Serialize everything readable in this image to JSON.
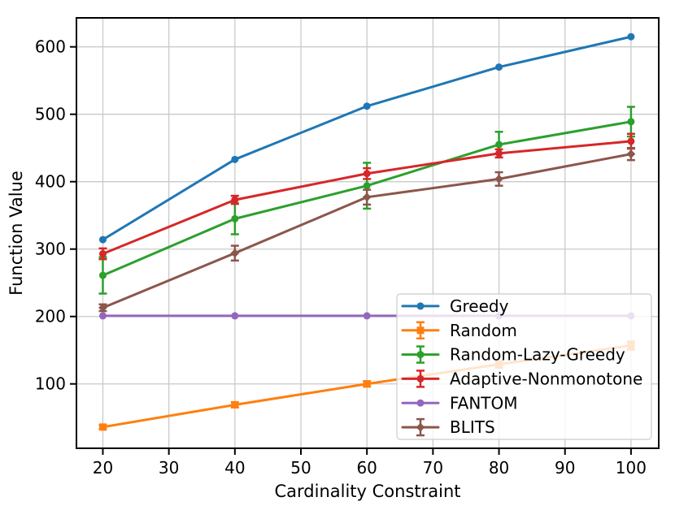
{
  "chart_data": {
    "type": "line",
    "title": "",
    "xlabel": "Cardinality Constraint",
    "ylabel": "Function Value",
    "x": [
      20,
      40,
      60,
      80,
      100
    ],
    "xticks": [
      20,
      30,
      40,
      50,
      60,
      70,
      80,
      90,
      100
    ],
    "yticks": [
      100,
      200,
      300,
      400,
      500,
      600
    ],
    "xlim": [
      16,
      104.2
    ],
    "ylim": [
      4.5,
      643
    ],
    "grid": true,
    "legend_position": "lower right",
    "grid_color": "#cacaca",
    "spine_color": "#000000",
    "legend_border_color": "#cccccc",
    "series": [
      {
        "name": "Greedy",
        "color": "#1f77b4",
        "marker": "circle",
        "values": [
          314,
          433,
          512,
          570,
          615
        ],
        "errors": [
          0,
          0,
          0,
          0,
          0
        ]
      },
      {
        "name": "Random",
        "color": "#ff7f0e",
        "marker": "square",
        "values": [
          36,
          69,
          100,
          129,
          157
        ],
        "errors": [
          3,
          4,
          4,
          5,
          6
        ]
      },
      {
        "name": "Random-Lazy-Greedy",
        "color": "#2ca02c",
        "marker": "circle",
        "values": [
          261,
          345,
          394,
          455,
          489
        ],
        "errors": [
          27,
          23,
          34,
          19,
          22
        ]
      },
      {
        "name": "Adaptive-Nonmonotone",
        "color": "#d62728",
        "marker": "circle",
        "values": [
          293,
          373,
          412,
          442,
          460
        ],
        "errors": [
          8,
          6,
          8,
          6,
          11
        ]
      },
      {
        "name": "FANTOM",
        "color": "#9467bd",
        "marker": "circle",
        "values": [
          201,
          201,
          201,
          201,
          201
        ],
        "errors": [
          0,
          0,
          0,
          0,
          0
        ]
      },
      {
        "name": "BLITS",
        "color": "#8c564b",
        "marker": "diamond",
        "values": [
          213,
          294,
          377,
          404,
          441
        ],
        "errors": [
          5,
          11,
          11,
          10,
          9
        ]
      }
    ]
  }
}
